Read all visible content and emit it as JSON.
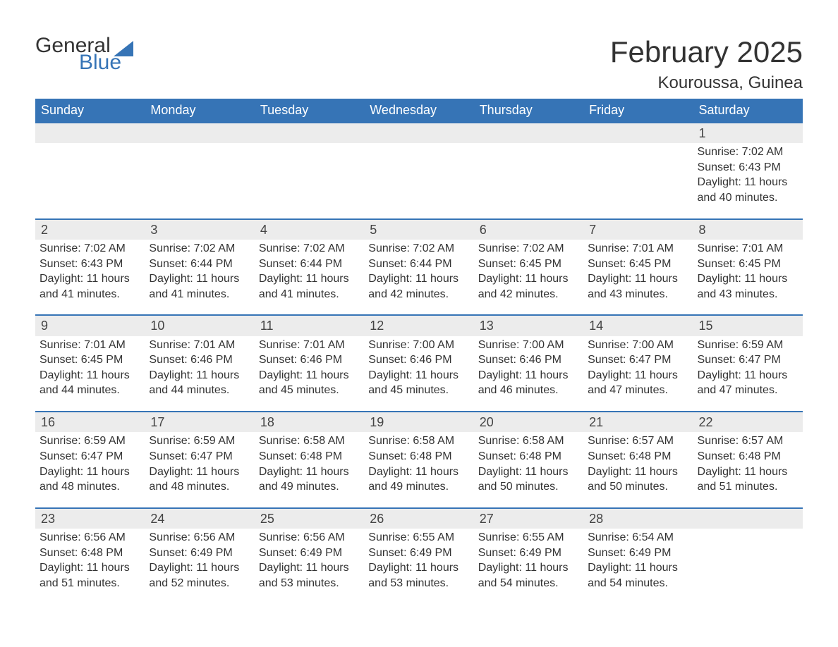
{
  "brand": {
    "part1": "General",
    "part2": "Blue",
    "color_text": "#333333",
    "color_accent": "#3674b6"
  },
  "header": {
    "month_title": "February 2025",
    "location": "Kouroussa, Guinea"
  },
  "calendar": {
    "type": "table",
    "background_color": "#ffffff",
    "header_bg": "#3674b6",
    "header_text_color": "#ffffff",
    "daynum_bg": "#ececec",
    "daynum_border_top": "#3674b6",
    "text_color": "#333333",
    "font_family": "Arial, Helvetica, sans-serif",
    "header_fontsize": 18,
    "daynum_fontsize": 18,
    "body_fontsize": 16,
    "columns": [
      "Sunday",
      "Monday",
      "Tuesday",
      "Wednesday",
      "Thursday",
      "Friday",
      "Saturday"
    ],
    "weeks": [
      [
        null,
        null,
        null,
        null,
        null,
        null,
        {
          "day": "1",
          "sunrise": "Sunrise: 7:02 AM",
          "sunset": "Sunset: 6:43 PM",
          "daylight": "Daylight: 11 hours and 40 minutes."
        }
      ],
      [
        {
          "day": "2",
          "sunrise": "Sunrise: 7:02 AM",
          "sunset": "Sunset: 6:43 PM",
          "daylight": "Daylight: 11 hours and 41 minutes."
        },
        {
          "day": "3",
          "sunrise": "Sunrise: 7:02 AM",
          "sunset": "Sunset: 6:44 PM",
          "daylight": "Daylight: 11 hours and 41 minutes."
        },
        {
          "day": "4",
          "sunrise": "Sunrise: 7:02 AM",
          "sunset": "Sunset: 6:44 PM",
          "daylight": "Daylight: 11 hours and 41 minutes."
        },
        {
          "day": "5",
          "sunrise": "Sunrise: 7:02 AM",
          "sunset": "Sunset: 6:44 PM",
          "daylight": "Daylight: 11 hours and 42 minutes."
        },
        {
          "day": "6",
          "sunrise": "Sunrise: 7:02 AM",
          "sunset": "Sunset: 6:45 PM",
          "daylight": "Daylight: 11 hours and 42 minutes."
        },
        {
          "day": "7",
          "sunrise": "Sunrise: 7:01 AM",
          "sunset": "Sunset: 6:45 PM",
          "daylight": "Daylight: 11 hours and 43 minutes."
        },
        {
          "day": "8",
          "sunrise": "Sunrise: 7:01 AM",
          "sunset": "Sunset: 6:45 PM",
          "daylight": "Daylight: 11 hours and 43 minutes."
        }
      ],
      [
        {
          "day": "9",
          "sunrise": "Sunrise: 7:01 AM",
          "sunset": "Sunset: 6:45 PM",
          "daylight": "Daylight: 11 hours and 44 minutes."
        },
        {
          "day": "10",
          "sunrise": "Sunrise: 7:01 AM",
          "sunset": "Sunset: 6:46 PM",
          "daylight": "Daylight: 11 hours and 44 minutes."
        },
        {
          "day": "11",
          "sunrise": "Sunrise: 7:01 AM",
          "sunset": "Sunset: 6:46 PM",
          "daylight": "Daylight: 11 hours and 45 minutes."
        },
        {
          "day": "12",
          "sunrise": "Sunrise: 7:00 AM",
          "sunset": "Sunset: 6:46 PM",
          "daylight": "Daylight: 11 hours and 45 minutes."
        },
        {
          "day": "13",
          "sunrise": "Sunrise: 7:00 AM",
          "sunset": "Sunset: 6:46 PM",
          "daylight": "Daylight: 11 hours and 46 minutes."
        },
        {
          "day": "14",
          "sunrise": "Sunrise: 7:00 AM",
          "sunset": "Sunset: 6:47 PM",
          "daylight": "Daylight: 11 hours and 47 minutes."
        },
        {
          "day": "15",
          "sunrise": "Sunrise: 6:59 AM",
          "sunset": "Sunset: 6:47 PM",
          "daylight": "Daylight: 11 hours and 47 minutes."
        }
      ],
      [
        {
          "day": "16",
          "sunrise": "Sunrise: 6:59 AM",
          "sunset": "Sunset: 6:47 PM",
          "daylight": "Daylight: 11 hours and 48 minutes."
        },
        {
          "day": "17",
          "sunrise": "Sunrise: 6:59 AM",
          "sunset": "Sunset: 6:47 PM",
          "daylight": "Daylight: 11 hours and 48 minutes."
        },
        {
          "day": "18",
          "sunrise": "Sunrise: 6:58 AM",
          "sunset": "Sunset: 6:48 PM",
          "daylight": "Daylight: 11 hours and 49 minutes."
        },
        {
          "day": "19",
          "sunrise": "Sunrise: 6:58 AM",
          "sunset": "Sunset: 6:48 PM",
          "daylight": "Daylight: 11 hours and 49 minutes."
        },
        {
          "day": "20",
          "sunrise": "Sunrise: 6:58 AM",
          "sunset": "Sunset: 6:48 PM",
          "daylight": "Daylight: 11 hours and 50 minutes."
        },
        {
          "day": "21",
          "sunrise": "Sunrise: 6:57 AM",
          "sunset": "Sunset: 6:48 PM",
          "daylight": "Daylight: 11 hours and 50 minutes."
        },
        {
          "day": "22",
          "sunrise": "Sunrise: 6:57 AM",
          "sunset": "Sunset: 6:48 PM",
          "daylight": "Daylight: 11 hours and 51 minutes."
        }
      ],
      [
        {
          "day": "23",
          "sunrise": "Sunrise: 6:56 AM",
          "sunset": "Sunset: 6:48 PM",
          "daylight": "Daylight: 11 hours and 51 minutes."
        },
        {
          "day": "24",
          "sunrise": "Sunrise: 6:56 AM",
          "sunset": "Sunset: 6:49 PM",
          "daylight": "Daylight: 11 hours and 52 minutes."
        },
        {
          "day": "25",
          "sunrise": "Sunrise: 6:56 AM",
          "sunset": "Sunset: 6:49 PM",
          "daylight": "Daylight: 11 hours and 53 minutes."
        },
        {
          "day": "26",
          "sunrise": "Sunrise: 6:55 AM",
          "sunset": "Sunset: 6:49 PM",
          "daylight": "Daylight: 11 hours and 53 minutes."
        },
        {
          "day": "27",
          "sunrise": "Sunrise: 6:55 AM",
          "sunset": "Sunset: 6:49 PM",
          "daylight": "Daylight: 11 hours and 54 minutes."
        },
        {
          "day": "28",
          "sunrise": "Sunrise: 6:54 AM",
          "sunset": "Sunset: 6:49 PM",
          "daylight": "Daylight: 11 hours and 54 minutes."
        },
        null
      ]
    ]
  }
}
